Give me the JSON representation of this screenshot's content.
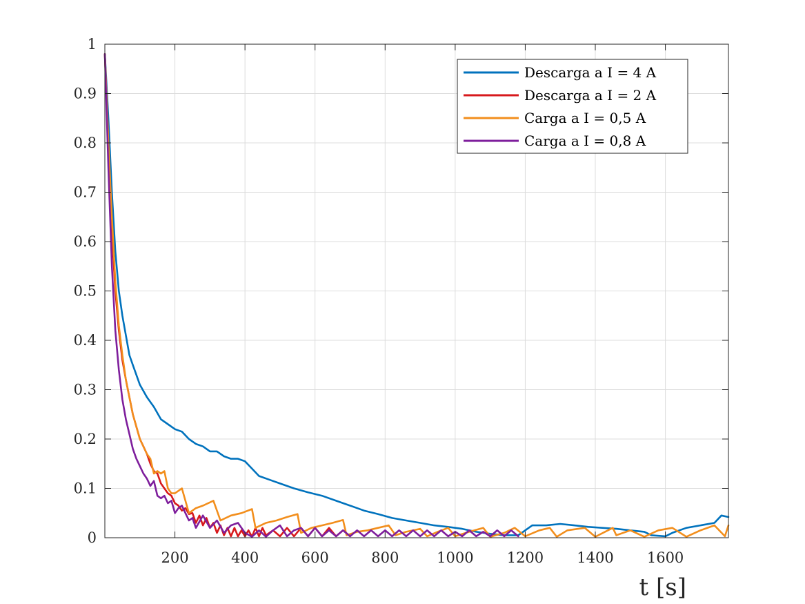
{
  "chart_data": {
    "type": "line",
    "title": "",
    "xlabel": "t [s]",
    "ylabel": "",
    "xlim": [
      0,
      1780
    ],
    "ylim": [
      0,
      1
    ],
    "grid": true,
    "legend_position": "top-right",
    "xticks": [
      200,
      400,
      600,
      800,
      1000,
      1200,
      1400,
      1600
    ],
    "xtick_labels": [
      "200",
      "400",
      "600",
      "800",
      "1000",
      "1200",
      "1400",
      "1600"
    ],
    "yticks": [
      0,
      0.1,
      0.2,
      0.3,
      0.4,
      0.5,
      0.6,
      0.7,
      0.8,
      0.9,
      1
    ],
    "ytick_labels": [
      "0",
      "0.1",
      "0.2",
      "0.3",
      "0.4",
      "0.5",
      "0.6",
      "0.7",
      "0.8",
      "0.9",
      "1"
    ],
    "series": [
      {
        "name": "Descarga a I = 4 A",
        "color": "#0072BD",
        "x": [
          0,
          10,
          20,
          30,
          40,
          50,
          60,
          70,
          80,
          100,
          120,
          140,
          160,
          180,
          200,
          220,
          240,
          260,
          280,
          300,
          320,
          340,
          360,
          380,
          400,
          420,
          440,
          460,
          480,
          500,
          540,
          580,
          620,
          660,
          700,
          740,
          780,
          820,
          860,
          900,
          940,
          980,
          1020,
          1060,
          1100,
          1140,
          1180,
          1200,
          1220,
          1260,
          1300,
          1340,
          1380,
          1420,
          1460,
          1500,
          1540,
          1560,
          1600,
          1620,
          1660,
          1700,
          1740,
          1760,
          1780
        ],
        "y": [
          0.98,
          0.85,
          0.7,
          0.58,
          0.5,
          0.45,
          0.41,
          0.37,
          0.35,
          0.31,
          0.285,
          0.265,
          0.24,
          0.23,
          0.22,
          0.215,
          0.2,
          0.19,
          0.185,
          0.175,
          0.175,
          0.165,
          0.16,
          0.16,
          0.155,
          0.14,
          0.125,
          0.12,
          0.115,
          0.11,
          0.1,
          0.092,
          0.085,
          0.075,
          0.065,
          0.055,
          0.048,
          0.04,
          0.035,
          0.03,
          0.025,
          0.022,
          0.018,
          0.012,
          0.008,
          0.005,
          0.005,
          0.015,
          0.025,
          0.025,
          0.028,
          0.025,
          0.022,
          0.02,
          0.018,
          0.015,
          0.012,
          0.005,
          0.003,
          0.01,
          0.02,
          0.025,
          0.03,
          0.045,
          0.042
        ]
      },
      {
        "name": "Descarga a I = 2 A",
        "color": "#D7191C",
        "x": [
          0,
          10,
          20,
          30,
          40,
          50,
          60,
          80,
          100,
          110,
          120,
          130,
          140,
          150,
          160,
          170,
          180,
          190,
          200,
          210,
          220,
          230,
          240,
          250,
          260,
          270,
          280,
          290,
          300,
          310,
          320,
          330,
          340,
          350,
          360,
          370,
          380,
          390,
          400,
          410,
          420,
          430,
          440,
          450,
          460,
          480,
          500,
          520,
          540,
          560,
          580,
          600,
          620,
          640,
          660,
          680,
          700
        ],
        "y": [
          0.98,
          0.8,
          0.62,
          0.5,
          0.42,
          0.36,
          0.32,
          0.25,
          0.2,
          0.185,
          0.17,
          0.15,
          0.135,
          0.13,
          0.11,
          0.1,
          0.09,
          0.085,
          0.07,
          0.065,
          0.055,
          0.06,
          0.048,
          0.05,
          0.03,
          0.045,
          0.025,
          0.04,
          0.02,
          0.03,
          0.01,
          0.025,
          0.005,
          0.02,
          0.003,
          0.02,
          0.003,
          0.015,
          0.003,
          0.015,
          0.002,
          0.02,
          0.003,
          0.02,
          0.005,
          0.015,
          0.003,
          0.02,
          0.003,
          0.02,
          0.003,
          0.02,
          0.003,
          0.02,
          0.003,
          0.015,
          0.003
        ]
      },
      {
        "name": "Carga a I = 0,5 A",
        "color": "#F28E1C",
        "x": [
          0,
          10,
          20,
          30,
          40,
          50,
          60,
          80,
          100,
          120,
          130,
          140,
          150,
          160,
          170,
          180,
          190,
          200,
          210,
          220,
          240,
          260,
          280,
          310,
          330,
          360,
          390,
          420,
          430,
          460,
          490,
          520,
          550,
          560,
          590,
          620,
          650,
          680,
          690,
          720,
          750,
          780,
          810,
          830,
          860,
          900,
          920,
          950,
          980,
          1000,
          1040,
          1080,
          1100,
          1140,
          1170,
          1200,
          1240,
          1270,
          1290,
          1320,
          1370,
          1400,
          1450,
          1460,
          1500,
          1540,
          1580,
          1620,
          1660,
          1700,
          1740,
          1770,
          1780
        ],
        "y": [
          0.98,
          0.8,
          0.65,
          0.52,
          0.43,
          0.37,
          0.32,
          0.25,
          0.2,
          0.17,
          0.16,
          0.13,
          0.135,
          0.13,
          0.135,
          0.1,
          0.09,
          0.09,
          0.095,
          0.1,
          0.05,
          0.06,
          0.065,
          0.075,
          0.035,
          0.045,
          0.05,
          0.058,
          0.02,
          0.03,
          0.035,
          0.042,
          0.048,
          0.01,
          0.02,
          0.025,
          0.03,
          0.036,
          0.005,
          0.012,
          0.015,
          0.02,
          0.025,
          0.005,
          0.012,
          0.018,
          0.003,
          0.012,
          0.02,
          0.003,
          0.012,
          0.02,
          0.002,
          0.01,
          0.02,
          0.003,
          0.015,
          0.02,
          0.002,
          0.015,
          0.02,
          0.002,
          0.02,
          0.005,
          0.015,
          0.002,
          0.015,
          0.02,
          0.002,
          0.015,
          0.025,
          0.003,
          0.025
        ]
      },
      {
        "name": "Carga a I = 0,8 A",
        "color": "#7E1E9C",
        "x": [
          0,
          10,
          20,
          30,
          40,
          50,
          60,
          70,
          80,
          90,
          100,
          110,
          120,
          130,
          140,
          150,
          160,
          170,
          180,
          190,
          200,
          210,
          220,
          230,
          240,
          250,
          260,
          280,
          300,
          320,
          340,
          360,
          380,
          400,
          420,
          440,
          460,
          480,
          500,
          520,
          540,
          560,
          580,
          600,
          620,
          640,
          660,
          680,
          700,
          720,
          740,
          760,
          780,
          800,
          820,
          840,
          860,
          880,
          900,
          920,
          940,
          960,
          980,
          1000,
          1020,
          1040,
          1060,
          1080,
          1100,
          1120,
          1140,
          1160,
          1180
        ],
        "y": [
          0.98,
          0.75,
          0.55,
          0.42,
          0.34,
          0.28,
          0.24,
          0.21,
          0.18,
          0.16,
          0.145,
          0.13,
          0.12,
          0.105,
          0.115,
          0.085,
          0.08,
          0.085,
          0.07,
          0.075,
          0.05,
          0.06,
          0.065,
          0.05,
          0.035,
          0.04,
          0.02,
          0.045,
          0.02,
          0.035,
          0.01,
          0.025,
          0.03,
          0.01,
          0.002,
          0.015,
          0.002,
          0.015,
          0.025,
          0.003,
          0.015,
          0.02,
          0.003,
          0.02,
          0.003,
          0.015,
          0.003,
          0.015,
          0.003,
          0.015,
          0.003,
          0.015,
          0.003,
          0.015,
          0.003,
          0.015,
          0.003,
          0.015,
          0.003,
          0.015,
          0.003,
          0.015,
          0.003,
          0.012,
          0.003,
          0.015,
          0.003,
          0.012,
          0.003,
          0.015,
          0.003,
          0.015,
          0.003
        ]
      }
    ]
  }
}
